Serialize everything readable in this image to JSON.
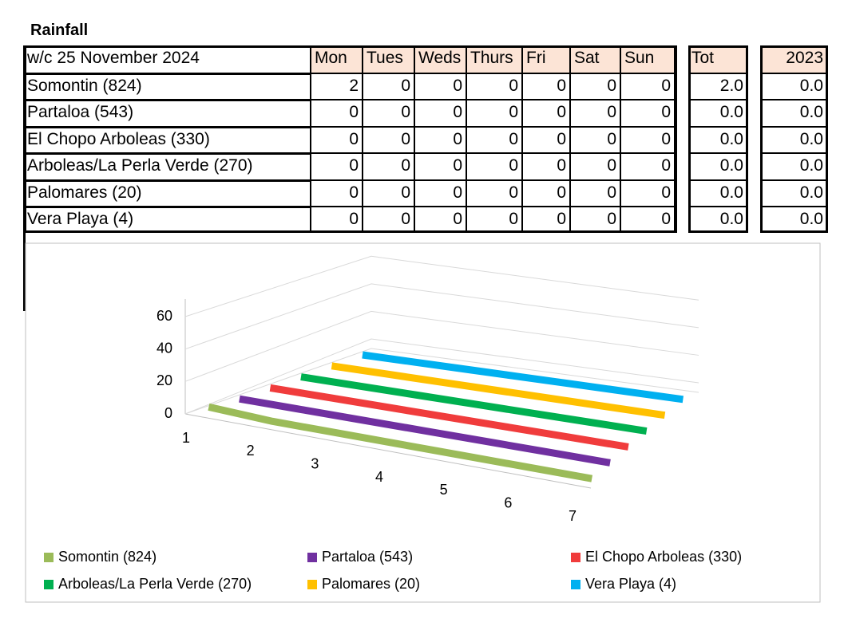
{
  "title": "Rainfall",
  "table": {
    "header": [
      "w/c 25 November 2024",
      "Mon",
      "Tues",
      "Weds",
      "Thurs",
      "Fri",
      "Sat",
      "Sun"
    ],
    "tot_header": "Tot",
    "prev_header": "2023",
    "rows": [
      {
        "label": "Somontin (824)",
        "days": [
          "2",
          "0",
          "0",
          "0",
          "0",
          "0",
          "0"
        ],
        "tot": "2.0",
        "prev": "0.0"
      },
      {
        "label": "Partaloa (543)",
        "days": [
          "0",
          "0",
          "0",
          "0",
          "0",
          "0",
          "0"
        ],
        "tot": "0.0",
        "prev": "0.0"
      },
      {
        "label": "El Chopo Arboleas (330)",
        "days": [
          "0",
          "0",
          "0",
          "0",
          "0",
          "0",
          "0"
        ],
        "tot": "0.0",
        "prev": "0.0"
      },
      {
        "label": "Arboleas/La Perla Verde (270)",
        "days": [
          "0",
          "0",
          "0",
          "0",
          "0",
          "0",
          "0"
        ],
        "tot": "0.0",
        "prev": "0.0"
      },
      {
        "label": "Palomares (20)",
        "days": [
          "0",
          "0",
          "0",
          "0",
          "0",
          "0",
          "0"
        ],
        "tot": "0.0",
        "prev": "0.0"
      },
      {
        "label": "Vera Playa (4)",
        "days": [
          "0",
          "0",
          "0",
          "0",
          "0",
          "0",
          "0"
        ],
        "tot": "0.0",
        "prev": "0.0"
      }
    ]
  },
  "chart_data": {
    "type": "line",
    "categories": [
      "1",
      "2",
      "3",
      "4",
      "5",
      "6",
      "7"
    ],
    "series": [
      {
        "name": "Somontin (824)",
        "color": "#9bbb59",
        "values": [
          2,
          0,
          0,
          0,
          0,
          0,
          0
        ]
      },
      {
        "name": "Partaloa (543)",
        "color": "#7030a0",
        "values": [
          0,
          0,
          0,
          0,
          0,
          0,
          0
        ]
      },
      {
        "name": "El Chopo Arboleas (330)",
        "color": "#f03c3c",
        "values": [
          0,
          0,
          0,
          0,
          0,
          0,
          0
        ]
      },
      {
        "name": "Arboleas/La Perla Verde (270)",
        "color": "#00b050",
        "values": [
          0,
          0,
          0,
          0,
          0,
          0,
          0
        ]
      },
      {
        "name": "Palomares (20)",
        "color": "#ffc000",
        "values": [
          0,
          0,
          0,
          0,
          0,
          0,
          0
        ]
      },
      {
        "name": "Vera Playa (4)",
        "color": "#00b0f0",
        "values": [
          0,
          0,
          0,
          0,
          0,
          0,
          0
        ]
      }
    ],
    "ylim": [
      0,
      60
    ],
    "yticks": [
      0,
      20,
      40,
      60
    ],
    "grid": true,
    "legend": "bottom"
  }
}
